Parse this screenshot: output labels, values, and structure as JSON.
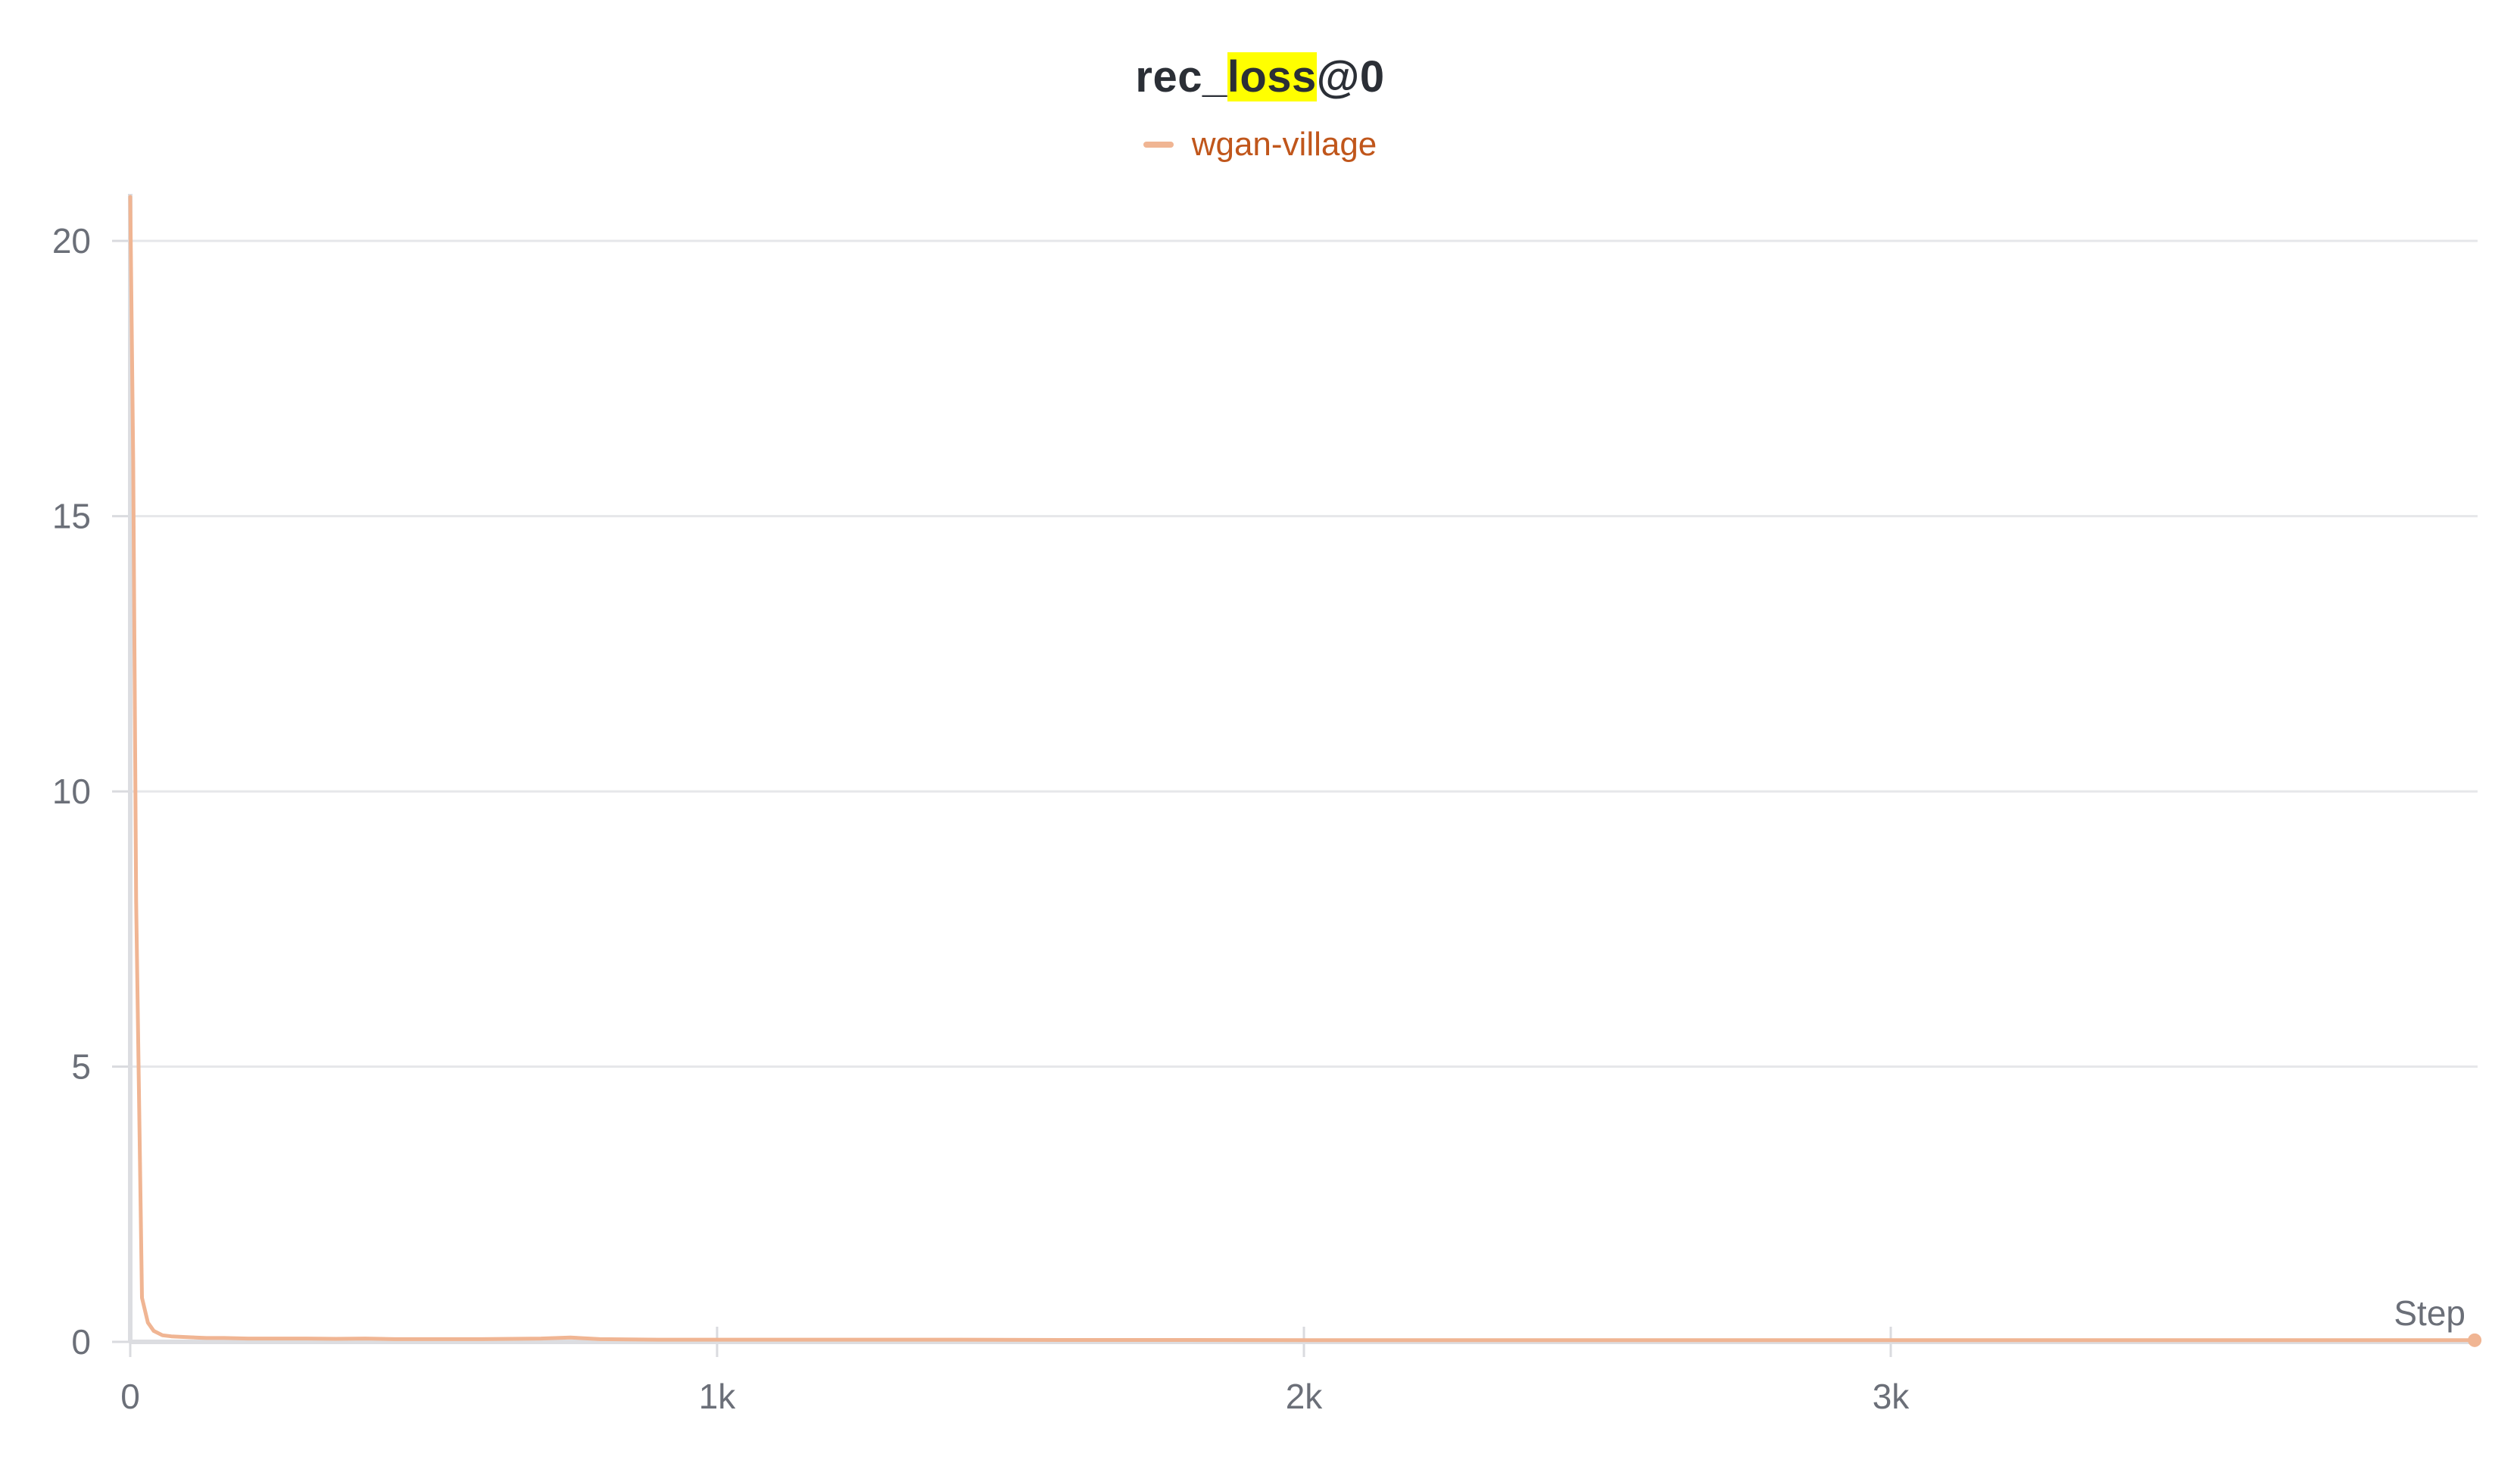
{
  "chart_data": {
    "type": "line",
    "title_parts": {
      "before": "rec_",
      "highlight": "loss",
      "after": "@0"
    },
    "legend": [
      {
        "name": "wgan-village",
        "color": "#f0b593",
        "text_color": "#c0561b"
      }
    ],
    "xlabel": "Step",
    "ylabel": "",
    "xlim": [
      0,
      4000
    ],
    "ylim": [
      0,
      20.8
    ],
    "x_ticks": [
      0,
      1000,
      2000,
      3000
    ],
    "x_tick_labels": [
      "0",
      "1k",
      "2k",
      "3k"
    ],
    "y_ticks": [
      0,
      5,
      10,
      15,
      20
    ],
    "y_tick_labels": [
      "0",
      "5",
      "10",
      "15",
      "20"
    ],
    "grid": true,
    "highlight_color": "#ffff00",
    "series": [
      {
        "name": "wgan-village",
        "color": "#f0b593",
        "x": [
          0,
          5,
          10,
          20,
          30,
          40,
          55,
          70,
          90,
          110,
          130,
          160,
          200,
          250,
          300,
          350,
          400,
          450,
          500,
          600,
          700,
          750,
          800,
          900,
          1000,
          1200,
          1400,
          1600,
          1800,
          2000,
          2200,
          2400,
          2600,
          2800,
          3000,
          3200,
          3400,
          3600,
          3800,
          3995
        ],
        "y": [
          20.8,
          16.0,
          8.0,
          0.8,
          0.35,
          0.2,
          0.12,
          0.1,
          0.09,
          0.08,
          0.07,
          0.07,
          0.06,
          0.06,
          0.06,
          0.055,
          0.06,
          0.05,
          0.05,
          0.05,
          0.06,
          0.08,
          0.05,
          0.04,
          0.04,
          0.04,
          0.04,
          0.035,
          0.035,
          0.03,
          0.03,
          0.03,
          0.03,
          0.03,
          0.03,
          0.03,
          0.03,
          0.03,
          0.03,
          0.03
        ]
      }
    ]
  }
}
